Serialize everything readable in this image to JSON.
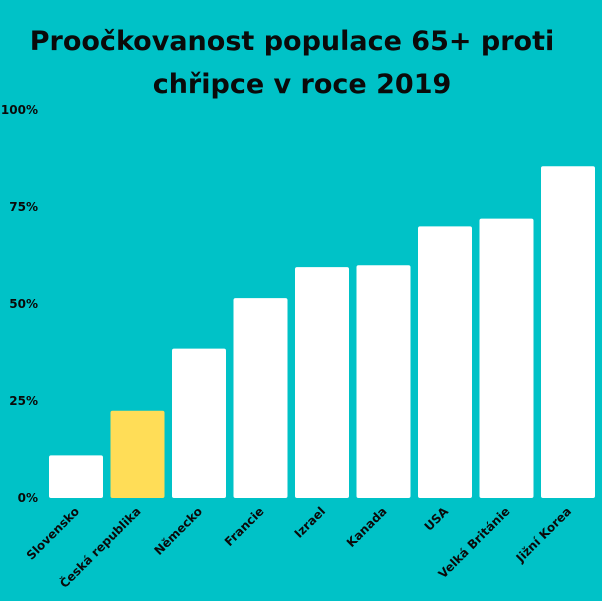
{
  "colors": {
    "background": "#00c2c7",
    "bar": "#ffffff",
    "highlight": "#ffdd57",
    "text": "#0a0a0a"
  },
  "chart_data": {
    "type": "bar",
    "title_lines": [
      "Proočkovanost populace 65+ proti",
      "chřipce v roce 2019"
    ],
    "xlabel": "",
    "ylabel": "",
    "ylim": [
      0,
      100
    ],
    "y_ticks": [
      0,
      25,
      50,
      75,
      100
    ],
    "y_tick_labels": [
      "0%",
      "25%",
      "50%",
      "75%",
      "100%"
    ],
    "grid": false,
    "categories": [
      "Slovensko",
      "Česká republika",
      "Německo",
      "Francie",
      "Izrael",
      "Kanada",
      "USA",
      "Velká Británie",
      "Jižní Korea"
    ],
    "values": [
      11,
      22.5,
      38.5,
      51.5,
      59.5,
      60,
      70,
      72,
      85.5
    ],
    "highlighted_category": "Česká republika"
  }
}
